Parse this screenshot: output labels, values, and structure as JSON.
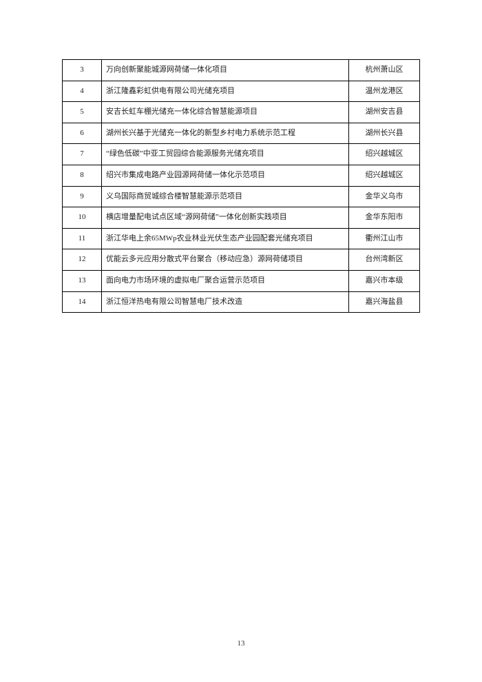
{
  "table": {
    "border_color": "#000000",
    "font_size": 11,
    "text_color": "#222222",
    "col_widths": {
      "num": 44,
      "loc": 90
    },
    "rows": [
      {
        "num": "3",
        "name": "万向创新聚能城源网荷储一体化项目",
        "loc": "杭州萧山区"
      },
      {
        "num": "4",
        "name": "浙江隆鑫彩虹供电有限公司光储充项目",
        "loc": "温州龙港区"
      },
      {
        "num": "5",
        "name": "安吉长虹车棚光储充一体化综合智慧能源项目",
        "loc": "湖州安吉县"
      },
      {
        "num": "6",
        "name": "湖州长兴基于光储充一体化的新型乡村电力系统示范工程",
        "loc": "湖州长兴县"
      },
      {
        "num": "7",
        "name": "“绿色低碳”中亚工贸园综合能源服务光储充项目",
        "loc": "绍兴越城区"
      },
      {
        "num": "8",
        "name": "绍兴市集成电路产业园源网荷储一体化示范项目",
        "loc": "绍兴越城区"
      },
      {
        "num": "9",
        "name": "义乌国际商贸城综合楼智慧能源示范项目",
        "loc": "金华义乌市"
      },
      {
        "num": "10",
        "name": "横店增量配电试点区域“源网荷储”一体化创新实践项目",
        "loc": "金华东阳市"
      },
      {
        "num": "11",
        "name": "浙江华电上余65MWp农业林业光伏生态产业园配套光储充项目",
        "loc": "衢州江山市"
      },
      {
        "num": "12",
        "name": "优能云多元应用分散式平台聚合（移动应急）源网荷储项目",
        "loc": "台州湾新区"
      },
      {
        "num": "13",
        "name": "面向电力市场环境的虚拟电厂聚合运营示范项目",
        "loc": "嘉兴市本级"
      },
      {
        "num": "14",
        "name": "浙江恒洋热电有限公司智慧电厂技术改造",
        "loc": "嘉兴海盐县"
      }
    ]
  },
  "page_number": "13",
  "background_color": "#ffffff"
}
